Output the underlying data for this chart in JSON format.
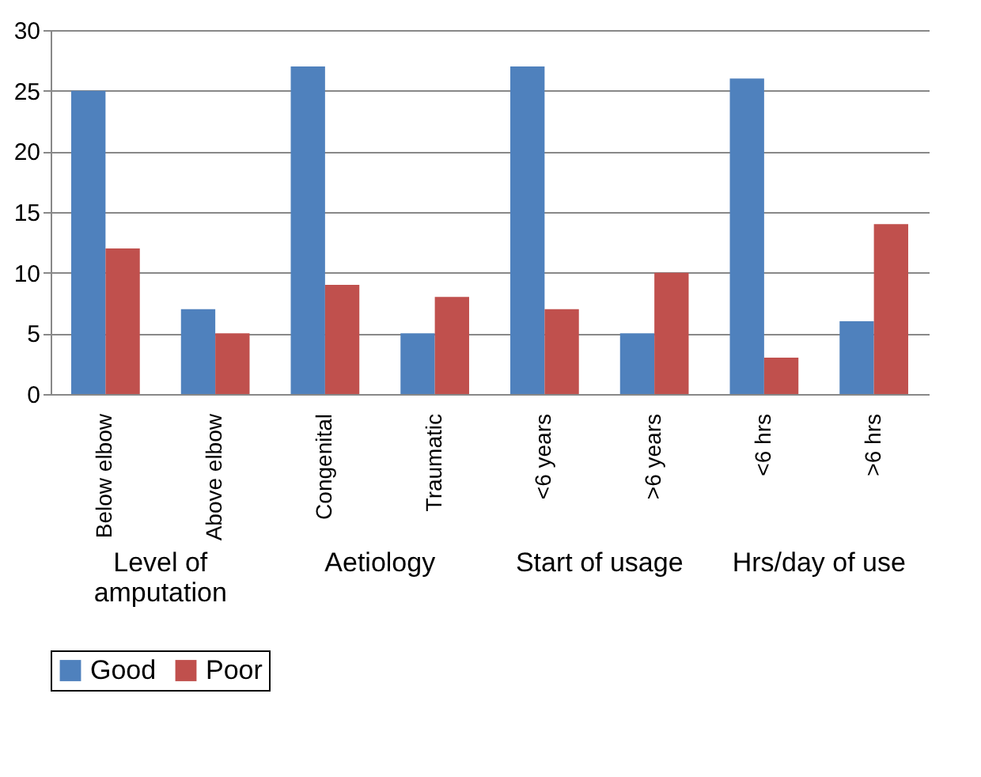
{
  "chart_data": {
    "type": "bar",
    "categories": [
      "Below elbow",
      "Above elbow",
      "Congenital",
      "Traumatic",
      "<6 years",
      ">6 years",
      "<6 hrs",
      ">6 hrs"
    ],
    "series": [
      {
        "name": "Good",
        "color": "#4f81bd",
        "values": [
          25,
          7,
          27,
          5,
          27,
          5,
          26,
          6
        ]
      },
      {
        "name": "Poor",
        "color": "#c0504d",
        "values": [
          12,
          5,
          9,
          8,
          7,
          10,
          3,
          14
        ]
      }
    ],
    "ylim": [
      0,
      30
    ],
    "yticks": [
      0,
      5,
      10,
      15,
      20,
      25,
      30
    ],
    "grid": "y",
    "legend": "bottom",
    "annotations": [
      "Level of amputation",
      "Aetiology",
      "Start of usage",
      "Hrs/day of use"
    ]
  }
}
